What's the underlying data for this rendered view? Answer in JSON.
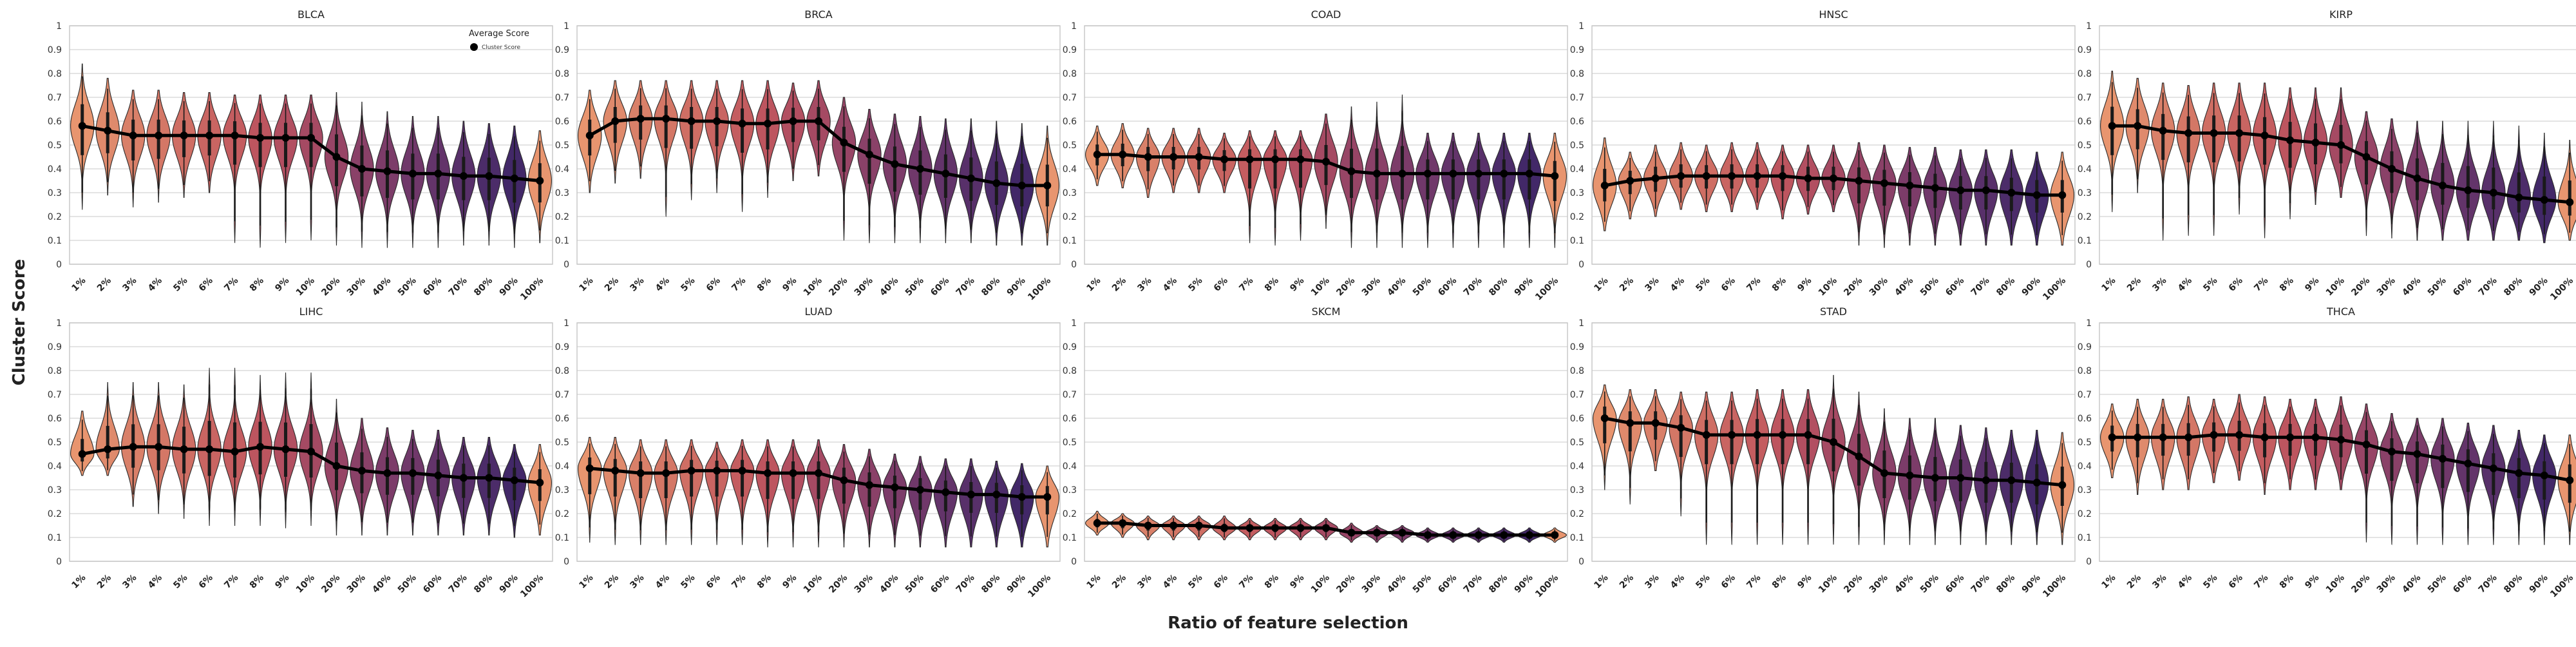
{
  "figure": {
    "ylabel": "Cluster Score",
    "xlabel": "Ratio of feature selection"
  },
  "legend": {
    "title": "Average Score",
    "label": "Cluster Score",
    "placement": "upper-right of BLCA panel"
  },
  "palette": [
    "#e8956f",
    "#df8a6c",
    "#d98069",
    "#d47766",
    "#cf6e64",
    "#c96562",
    "#c45d60",
    "#bd555f",
    "#b24f61",
    "#a54a63",
    "#974566",
    "#8a4168",
    "#7c3c69",
    "#70386a",
    "#63346a",
    "#58306a",
    "#4c2c69",
    "#422868"
  ],
  "chart_data": [
    {
      "type": "violin",
      "title": "BLCA",
      "categories": [
        "1%",
        "2%",
        "3%",
        "4%",
        "5%",
        "6%",
        "7%",
        "8%",
        "9%",
        "10%",
        "20%",
        "30%",
        "40%",
        "50%",
        "60%",
        "70%",
        "80%",
        "90%",
        "100%"
      ],
      "ylim": [
        0,
        1
      ],
      "yticks": [
        "0",
        "0.1",
        "0.2",
        "0.3",
        "0.4",
        "0.5",
        "0.6",
        "0.7",
        "0.8",
        "0.9",
        "1"
      ],
      "grid": true,
      "average_score": [
        0.58,
        0.56,
        0.54,
        0.54,
        0.54,
        0.54,
        0.54,
        0.53,
        0.53,
        0.53,
        0.45,
        0.4,
        0.39,
        0.38,
        0.38,
        0.37,
        0.37,
        0.36,
        0.35
      ],
      "min": [
        0.23,
        0.29,
        0.24,
        0.26,
        0.28,
        0.3,
        0.09,
        0.07,
        0.09,
        0.1,
        0.08,
        0.07,
        0.07,
        0.07,
        0.07,
        0.08,
        0.08,
        0.07,
        0.09
      ],
      "max": [
        0.84,
        0.78,
        0.73,
        0.73,
        0.72,
        0.72,
        0.71,
        0.71,
        0.71,
        0.71,
        0.72,
        0.68,
        0.64,
        0.62,
        0.62,
        0.6,
        0.59,
        0.58,
        0.56
      ]
    },
    {
      "type": "violin",
      "title": "BRCA",
      "categories": [
        "1%",
        "2%",
        "3%",
        "4%",
        "5%",
        "6%",
        "7%",
        "8%",
        "9%",
        "10%",
        "20%",
        "30%",
        "40%",
        "50%",
        "60%",
        "70%",
        "80%",
        "90%",
        "100%"
      ],
      "ylim": [
        0,
        1
      ],
      "yticks": [
        "0",
        "0.1",
        "0.2",
        "0.3",
        "0.4",
        "0.5",
        "0.6",
        "0.7",
        "0.8",
        "0.9",
        "1"
      ],
      "grid": true,
      "average_score": [
        0.54,
        0.6,
        0.61,
        0.61,
        0.6,
        0.6,
        0.59,
        0.59,
        0.6,
        0.6,
        0.51,
        0.46,
        0.42,
        0.4,
        0.38,
        0.36,
        0.34,
        0.33,
        0.33
      ],
      "min": [
        0.3,
        0.34,
        0.36,
        0.2,
        0.27,
        0.3,
        0.22,
        0.28,
        0.35,
        0.37,
        0.1,
        0.09,
        0.09,
        0.09,
        0.09,
        0.09,
        0.08,
        0.08,
        0.08
      ],
      "max": [
        0.73,
        0.77,
        0.77,
        0.77,
        0.77,
        0.77,
        0.77,
        0.77,
        0.76,
        0.77,
        0.7,
        0.65,
        0.63,
        0.62,
        0.61,
        0.61,
        0.6,
        0.59,
        0.58
      ]
    },
    {
      "type": "violin",
      "title": "COAD",
      "categories": [
        "1%",
        "2%",
        "3%",
        "4%",
        "5%",
        "6%",
        "7%",
        "8%",
        "9%",
        "10%",
        "20%",
        "30%",
        "40%",
        "50%",
        "60%",
        "70%",
        "80%",
        "90%",
        "100%"
      ],
      "ylim": [
        0,
        1
      ],
      "yticks": [
        "0",
        "0.1",
        "0.2",
        "0.3",
        "0.4",
        "0.5",
        "0.6",
        "0.7",
        "0.8",
        "0.9",
        "1"
      ],
      "grid": true,
      "average_score": [
        0.46,
        0.46,
        0.45,
        0.45,
        0.45,
        0.44,
        0.44,
        0.44,
        0.44,
        0.43,
        0.39,
        0.38,
        0.38,
        0.38,
        0.38,
        0.38,
        0.38,
        0.38,
        0.37
      ],
      "min": [
        0.33,
        0.32,
        0.28,
        0.3,
        0.3,
        0.3,
        0.09,
        0.08,
        0.1,
        0.15,
        0.07,
        0.07,
        0.07,
        0.07,
        0.07,
        0.07,
        0.07,
        0.07,
        0.07
      ],
      "max": [
        0.58,
        0.59,
        0.57,
        0.57,
        0.57,
        0.55,
        0.56,
        0.56,
        0.56,
        0.63,
        0.66,
        0.68,
        0.71,
        0.55,
        0.55,
        0.55,
        0.55,
        0.55,
        0.55
      ]
    },
    {
      "type": "violin",
      "title": "HNSC",
      "categories": [
        "1%",
        "2%",
        "3%",
        "4%",
        "5%",
        "6%",
        "7%",
        "8%",
        "9%",
        "10%",
        "20%",
        "30%",
        "40%",
        "50%",
        "60%",
        "70%",
        "80%",
        "90%",
        "100%"
      ],
      "ylim": [
        0,
        1
      ],
      "yticks": [
        "0",
        "0.1",
        "0.2",
        "0.3",
        "0.4",
        "0.5",
        "0.6",
        "0.7",
        "0.8",
        "0.9",
        "1"
      ],
      "grid": true,
      "average_score": [
        0.33,
        0.35,
        0.36,
        0.37,
        0.37,
        0.37,
        0.37,
        0.37,
        0.36,
        0.36,
        0.35,
        0.34,
        0.33,
        0.32,
        0.31,
        0.31,
        0.3,
        0.29,
        0.29
      ],
      "min": [
        0.14,
        0.19,
        0.2,
        0.23,
        0.22,
        0.22,
        0.23,
        0.19,
        0.21,
        0.22,
        0.08,
        0.07,
        0.08,
        0.08,
        0.08,
        0.08,
        0.08,
        0.08,
        0.08
      ],
      "max": [
        0.53,
        0.47,
        0.5,
        0.51,
        0.5,
        0.51,
        0.51,
        0.5,
        0.5,
        0.5,
        0.51,
        0.5,
        0.49,
        0.49,
        0.48,
        0.48,
        0.48,
        0.47,
        0.47
      ]
    },
    {
      "type": "violin",
      "title": "KIRP",
      "categories": [
        "1%",
        "2%",
        "3%",
        "4%",
        "5%",
        "6%",
        "7%",
        "8%",
        "9%",
        "10%",
        "20%",
        "30%",
        "40%",
        "50%",
        "60%",
        "70%",
        "80%",
        "90%",
        "100%"
      ],
      "ylim": [
        0,
        1
      ],
      "yticks": [
        "0",
        "0.1",
        "0.2",
        "0.3",
        "0.4",
        "0.5",
        "0.6",
        "0.7",
        "0.8",
        "0.9",
        "1"
      ],
      "grid": true,
      "average_score": [
        0.58,
        0.58,
        0.56,
        0.55,
        0.55,
        0.55,
        0.54,
        0.52,
        0.51,
        0.5,
        0.45,
        0.4,
        0.36,
        0.33,
        0.31,
        0.3,
        0.28,
        0.27,
        0.26
      ],
      "min": [
        0.22,
        0.3,
        0.1,
        0.12,
        0.12,
        0.21,
        0.11,
        0.19,
        0.25,
        0.28,
        0.12,
        0.11,
        0.1,
        0.1,
        0.1,
        0.1,
        0.1,
        0.09,
        0.1
      ],
      "max": [
        0.81,
        0.78,
        0.76,
        0.75,
        0.76,
        0.76,
        0.76,
        0.74,
        0.74,
        0.74,
        0.64,
        0.61,
        0.6,
        0.6,
        0.6,
        0.6,
        0.58,
        0.55,
        0.52
      ]
    },
    {
      "type": "violin",
      "title": "LIHC",
      "categories": [
        "1%",
        "2%",
        "3%",
        "4%",
        "5%",
        "6%",
        "7%",
        "8%",
        "9%",
        "10%",
        "20%",
        "30%",
        "40%",
        "50%",
        "60%",
        "70%",
        "80%",
        "90%",
        "100%"
      ],
      "ylim": [
        0,
        1
      ],
      "yticks": [
        "0",
        "0.1",
        "0.2",
        "0.3",
        "0.4",
        "0.5",
        "0.6",
        "0.7",
        "0.8",
        "0.9",
        "1"
      ],
      "grid": true,
      "average_score": [
        0.45,
        0.47,
        0.48,
        0.48,
        0.47,
        0.47,
        0.46,
        0.48,
        0.47,
        0.46,
        0.4,
        0.38,
        0.37,
        0.37,
        0.36,
        0.35,
        0.35,
        0.34,
        0.33
      ],
      "min": [
        0.36,
        0.36,
        0.23,
        0.2,
        0.18,
        0.15,
        0.15,
        0.15,
        0.14,
        0.15,
        0.11,
        0.11,
        0.11,
        0.11,
        0.11,
        0.11,
        0.11,
        0.1,
        0.11
      ],
      "max": [
        0.63,
        0.75,
        0.75,
        0.75,
        0.74,
        0.81,
        0.81,
        0.78,
        0.79,
        0.79,
        0.68,
        0.6,
        0.56,
        0.55,
        0.55,
        0.52,
        0.52,
        0.49,
        0.49
      ]
    },
    {
      "type": "violin",
      "title": "LUAD",
      "categories": [
        "1%",
        "2%",
        "3%",
        "4%",
        "5%",
        "6%",
        "7%",
        "8%",
        "9%",
        "10%",
        "20%",
        "30%",
        "40%",
        "50%",
        "60%",
        "70%",
        "80%",
        "90%",
        "100%"
      ],
      "ylim": [
        0,
        1
      ],
      "yticks": [
        "0",
        "0.1",
        "0.2",
        "0.3",
        "0.4",
        "0.5",
        "0.6",
        "0.7",
        "0.8",
        "0.9",
        "1"
      ],
      "grid": true,
      "average_score": [
        0.39,
        0.38,
        0.37,
        0.37,
        0.38,
        0.38,
        0.38,
        0.37,
        0.37,
        0.37,
        0.34,
        0.32,
        0.31,
        0.3,
        0.29,
        0.28,
        0.28,
        0.27,
        0.27
      ],
      "min": [
        0.08,
        0.07,
        0.07,
        0.07,
        0.07,
        0.07,
        0.07,
        0.06,
        0.06,
        0.06,
        0.06,
        0.06,
        0.06,
        0.06,
        0.06,
        0.06,
        0.06,
        0.06,
        0.06
      ],
      "max": [
        0.52,
        0.52,
        0.51,
        0.51,
        0.51,
        0.5,
        0.51,
        0.51,
        0.51,
        0.51,
        0.49,
        0.47,
        0.45,
        0.44,
        0.43,
        0.43,
        0.42,
        0.41,
        0.4
      ]
    },
    {
      "type": "violin",
      "title": "SKCM",
      "categories": [
        "1%",
        "2%",
        "3%",
        "4%",
        "5%",
        "6%",
        "7%",
        "8%",
        "9%",
        "10%",
        "20%",
        "30%",
        "40%",
        "50%",
        "60%",
        "70%",
        "80%",
        "90%",
        "100%"
      ],
      "ylim": [
        0,
        1
      ],
      "yticks": [
        "0",
        "0.1",
        "0.2",
        "0.3",
        "0.4",
        "0.5",
        "0.6",
        "0.7",
        "0.8",
        "0.9",
        "1"
      ],
      "grid": true,
      "average_score": [
        0.16,
        0.16,
        0.15,
        0.15,
        0.15,
        0.14,
        0.14,
        0.14,
        0.14,
        0.14,
        0.12,
        0.12,
        0.12,
        0.11,
        0.11,
        0.11,
        0.11,
        0.11,
        0.11
      ],
      "min": [
        0.11,
        0.1,
        0.09,
        0.09,
        0.09,
        0.09,
        0.09,
        0.09,
        0.09,
        0.09,
        0.08,
        0.08,
        0.08,
        0.08,
        0.08,
        0.08,
        0.08,
        0.08,
        0.08
      ],
      "max": [
        0.21,
        0.2,
        0.19,
        0.19,
        0.19,
        0.19,
        0.18,
        0.18,
        0.18,
        0.18,
        0.16,
        0.15,
        0.15,
        0.14,
        0.14,
        0.14,
        0.14,
        0.14,
        0.14
      ]
    },
    {
      "type": "violin",
      "title": "STAD",
      "categories": [
        "1%",
        "2%",
        "3%",
        "4%",
        "5%",
        "6%",
        "7%",
        "8%",
        "9%",
        "10%",
        "20%",
        "30%",
        "40%",
        "50%",
        "60%",
        "70%",
        "80%",
        "90%",
        "100%"
      ],
      "ylim": [
        0,
        1
      ],
      "yticks": [
        "0",
        "0.1",
        "0.2",
        "0.3",
        "0.4",
        "0.5",
        "0.6",
        "0.7",
        "0.8",
        "0.9",
        "1"
      ],
      "grid": true,
      "average_score": [
        0.6,
        0.58,
        0.58,
        0.56,
        0.53,
        0.53,
        0.53,
        0.53,
        0.53,
        0.5,
        0.44,
        0.37,
        0.36,
        0.35,
        0.35,
        0.34,
        0.34,
        0.33,
        0.32
      ],
      "min": [
        0.3,
        0.24,
        0.38,
        0.19,
        0.07,
        0.07,
        0.07,
        0.07,
        0.07,
        0.07,
        0.07,
        0.07,
        0.07,
        0.07,
        0.07,
        0.07,
        0.07,
        0.07,
        0.07
      ],
      "max": [
        0.74,
        0.72,
        0.72,
        0.71,
        0.71,
        0.71,
        0.72,
        0.72,
        0.72,
        0.78,
        0.71,
        0.64,
        0.6,
        0.6,
        0.57,
        0.56,
        0.55,
        0.55,
        0.54
      ]
    },
    {
      "type": "violin",
      "title": "THCA",
      "categories": [
        "1%",
        "2%",
        "3%",
        "4%",
        "5%",
        "6%",
        "7%",
        "8%",
        "9%",
        "10%",
        "20%",
        "30%",
        "40%",
        "50%",
        "60%",
        "70%",
        "80%",
        "90%",
        "100%"
      ],
      "ylim": [
        0,
        1
      ],
      "yticks": [
        "0",
        "0.1",
        "0.2",
        "0.3",
        "0.4",
        "0.5",
        "0.6",
        "0.7",
        "0.8",
        "0.9",
        "1"
      ],
      "grid": true,
      "average_score": [
        0.52,
        0.52,
        0.52,
        0.52,
        0.53,
        0.53,
        0.52,
        0.52,
        0.52,
        0.51,
        0.49,
        0.46,
        0.45,
        0.43,
        0.41,
        0.39,
        0.37,
        0.36,
        0.34
      ],
      "min": [
        0.35,
        0.28,
        0.3,
        0.3,
        0.33,
        0.34,
        0.28,
        0.3,
        0.3,
        0.3,
        0.08,
        0.07,
        0.07,
        0.07,
        0.07,
        0.07,
        0.07,
        0.07,
        0.07
      ],
      "max": [
        0.66,
        0.68,
        0.68,
        0.69,
        0.68,
        0.7,
        0.69,
        0.68,
        0.68,
        0.69,
        0.66,
        0.62,
        0.6,
        0.6,
        0.58,
        0.57,
        0.55,
        0.53,
        0.53
      ]
    }
  ]
}
